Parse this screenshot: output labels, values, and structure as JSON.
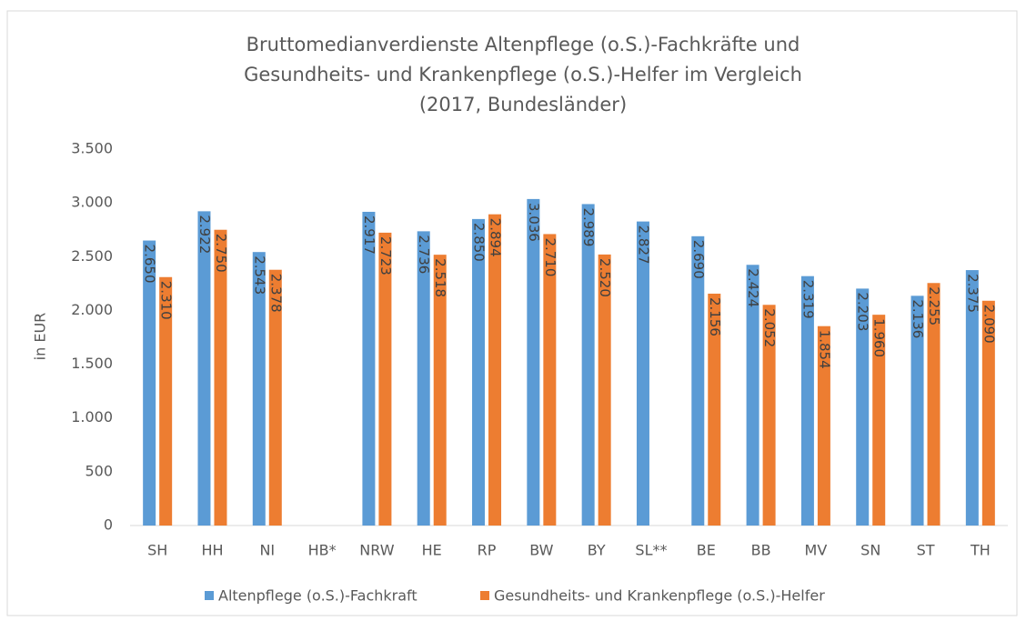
{
  "chart_data": {
    "type": "bar",
    "title": [
      "Bruttomedianverdienste Altenpflege (o.S.)-Fachkräfte und",
      "Gesundheits- und Krankenpflege (o.S.)-Helfer im Vergleich",
      "(2017, Bundesländer)"
    ],
    "y_label": "in EUR",
    "categories": [
      "SH",
      "HH",
      "NI",
      "HB*",
      "NRW",
      "HE",
      "RP",
      "BW",
      "BY",
      "SL**",
      "BE",
      "BB",
      "MV",
      "SN",
      "ST",
      "TH"
    ],
    "series": [
      {
        "name": "Altenpflege (o.S.)-Fachkraft",
        "color": "#5B9BD5",
        "values": [
          2650,
          2922,
          2543,
          null,
          2917,
          2736,
          2850,
          3036,
          2989,
          2827,
          2690,
          2424,
          2319,
          2203,
          2136,
          2375
        ],
        "value_labels": [
          "2.650",
          "2.922",
          "2.543",
          null,
          "2.917",
          "2.736",
          "2.850",
          "3.036",
          "2.989",
          "2.827",
          "2.690",
          "2.424",
          "2.319",
          "2.203",
          "2.136",
          "2.375"
        ]
      },
      {
        "name": "Gesundheits- und Krankenpflege (o.S.)-Helfer",
        "color": "#ED7D31",
        "values": [
          2310,
          2750,
          2378,
          null,
          2723,
          2518,
          2894,
          2710,
          2520,
          null,
          2156,
          2052,
          1854,
          1960,
          2255,
          2090
        ],
        "value_labels": [
          "2.310",
          "2.750",
          "2.378",
          null,
          "2.723",
          "2.518",
          "2.894",
          "2.710",
          "2.520",
          null,
          "2.156",
          "2.052",
          "1.854",
          "1.960",
          "2.255",
          "2.090"
        ]
      }
    ],
    "ylim": [
      0,
      3500
    ],
    "yticks": [
      0,
      500,
      {
        "value": 1000,
        "label": "1.000"
      },
      {
        "value": 1500,
        "label": "1.500"
      },
      {
        "value": 2000,
        "label": "2.000"
      },
      {
        "value": 2500,
        "label": "2.500"
      },
      {
        "value": 3000,
        "label": "3.000"
      },
      {
        "value": 3500,
        "label": "3.500"
      }
    ],
    "grid": false,
    "legend": "bottom"
  }
}
